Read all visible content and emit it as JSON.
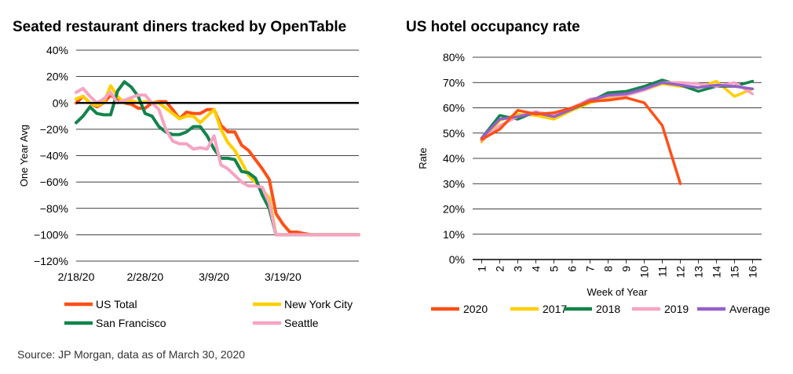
{
  "source": "Source: JP Morgan, data as of March 30, 2020",
  "chart_data": [
    {
      "type": "line",
      "title": "Seated restaurant diners tracked by OpenTable",
      "xlabel": "",
      "ylabel": "One Year Avg",
      "ylim": [
        -120,
        40
      ],
      "yticks": [
        40,
        20,
        0,
        -20,
        -40,
        -60,
        -80,
        -100,
        -120
      ],
      "ytick_labels": [
        "40%",
        "20%",
        "0%",
        "−20%",
        "−40%",
        "−60%",
        "−80%",
        "−100%",
        "−120%"
      ],
      "xlim": [
        0,
        41
      ],
      "xticks": [
        0,
        10,
        20,
        30
      ],
      "xtick_labels": [
        "2/18/20",
        "2/28/20",
        "3/9/20",
        "3/19/20"
      ],
      "zero_line": true,
      "series": [
        {
          "name": "US Total",
          "color": "#FF4F17",
          "x": [
            0,
            1,
            2,
            3,
            4,
            5,
            6,
            7,
            8,
            9,
            10,
            11,
            12,
            13,
            14,
            15,
            16,
            17,
            18,
            19,
            20,
            21,
            22,
            23,
            24,
            25,
            26,
            27,
            28,
            29,
            30,
            31,
            32,
            33,
            34,
            35,
            36,
            37,
            38,
            39,
            40,
            41
          ],
          "y": [
            0,
            5,
            0,
            -3,
            0,
            6,
            2,
            0,
            -1,
            -4,
            -4,
            0,
            1,
            1,
            -5,
            -12,
            -7,
            -8,
            -8,
            -5,
            -5,
            -17,
            -22,
            -22,
            -32,
            -36,
            -43,
            -50,
            -58,
            -84,
            -92,
            -98,
            -98,
            -99,
            -100,
            -100,
            -100,
            -100,
            -100,
            -100,
            -100,
            -100
          ]
        },
        {
          "name": "New York City",
          "color": "#FFCE00",
          "x": [
            0,
            1,
            2,
            3,
            4,
            5,
            6,
            7,
            8,
            9,
            10,
            11,
            12,
            13,
            14,
            15,
            16,
            17,
            18,
            19,
            20,
            21,
            22,
            23,
            24,
            25,
            26,
            27,
            28,
            29,
            30,
            31,
            32,
            33,
            34,
            35,
            36,
            37,
            38,
            39,
            40,
            41
          ],
          "y": [
            3,
            5,
            0,
            -2,
            0,
            13,
            5,
            0,
            2,
            0,
            1,
            0,
            0,
            -4,
            -8,
            -12,
            -10,
            -10,
            -15,
            -10,
            -5,
            -20,
            -30,
            -36,
            -45,
            -55,
            -60,
            -66,
            -72,
            -100,
            -100,
            -100,
            -100,
            -100,
            -100,
            -100,
            -100,
            -100,
            -100,
            -100,
            -100,
            -100
          ]
        },
        {
          "name": "San Francisco",
          "color": "#13834C",
          "x": [
            0,
            1,
            2,
            3,
            4,
            5,
            6,
            7,
            8,
            9,
            10,
            11,
            12,
            13,
            14,
            15,
            16,
            17,
            18,
            19,
            20,
            21,
            22,
            23,
            24,
            25,
            26,
            27,
            28,
            29,
            30,
            31,
            32,
            33,
            34,
            35,
            36,
            37,
            38,
            39,
            40,
            41
          ],
          "y": [
            -15,
            -10,
            -3,
            -8,
            -9,
            -9,
            9,
            16,
            12,
            5,
            -8,
            -10,
            -18,
            -22,
            -24,
            -24,
            -22,
            -18,
            -18,
            -25,
            -35,
            -42,
            -42,
            -43,
            -52,
            -53,
            -57,
            -70,
            -80,
            -100,
            -100,
            -100,
            -100,
            -100,
            -100,
            -100,
            -100,
            -100,
            -100,
            -100,
            -100,
            -100
          ]
        },
        {
          "name": "Seattle",
          "color": "#F7A3C2",
          "x": [
            0,
            1,
            2,
            3,
            4,
            5,
            6,
            7,
            8,
            9,
            10,
            11,
            12,
            13,
            14,
            15,
            16,
            17,
            18,
            19,
            20,
            21,
            22,
            23,
            24,
            25,
            26,
            27,
            28,
            29,
            30,
            31,
            32,
            33,
            34,
            35,
            36,
            37,
            38,
            39,
            40,
            41
          ],
          "y": [
            8,
            11,
            5,
            0,
            3,
            8,
            0,
            2,
            4,
            6,
            6,
            0,
            -5,
            -20,
            -29,
            -31,
            -31,
            -35,
            -34,
            -35,
            -25,
            -47,
            -50,
            -55,
            -60,
            -63,
            -63,
            -64,
            -76,
            -100,
            -100,
            -100,
            -100,
            -100,
            -100,
            -100,
            -100,
            -100,
            -100,
            -100,
            -100,
            -100
          ]
        }
      ],
      "legend": {
        "placement": "bottom",
        "entries": [
          "US Total",
          "New York City",
          "San Francisco",
          "Seattle"
        ]
      }
    },
    {
      "type": "line",
      "title": "US hotel occupancy rate",
      "xlabel": "Week of Year",
      "ylabel": "Rate",
      "ylim": [
        0,
        80
      ],
      "yticks": [
        80,
        70,
        60,
        50,
        40,
        30,
        20,
        10,
        0
      ],
      "ytick_labels": [
        "80%",
        "70%",
        "60%",
        "50%",
        "40%",
        "30%",
        "20%",
        "10%",
        "0%"
      ],
      "categories": [
        "1",
        "2",
        "3",
        "4",
        "5",
        "6",
        "7",
        "8",
        "9",
        "10",
        "11",
        "12",
        "13",
        "14",
        "15",
        "16"
      ],
      "series": [
        {
          "name": "2017",
          "color": "#FFCE00",
          "values": [
            46.5,
            55,
            57.5,
            57,
            55.5,
            59,
            62,
            64,
            65,
            67,
            69.5,
            68.5,
            68,
            70.5,
            64.5,
            67.5
          ]
        },
        {
          "name": "2018",
          "color": "#13834C",
          "values": [
            48,
            57,
            55.5,
            58.5,
            56.5,
            59.5,
            62.5,
            66,
            66.5,
            68.5,
            71,
            69,
            66.5,
            68.5,
            68.5,
            70.5
          ]
        },
        {
          "name": "2019",
          "color": "#F7A3C2",
          "values": [
            47,
            53,
            56.5,
            58.5,
            57,
            60,
            63.5,
            64.5,
            65,
            67,
            70,
            70,
            69.5,
            68.5,
            70,
            65.5
          ]
        },
        {
          "name": "Average",
          "color": "#9461C9",
          "values": [
            48,
            55.5,
            56.5,
            58,
            56.5,
            59.5,
            63,
            65,
            65.5,
            67.5,
            70,
            69,
            68,
            69,
            68.5,
            67.5
          ]
        },
        {
          "name": "2020",
          "color": "#FF4F17",
          "values": [
            47.5,
            51.5,
            59,
            57.5,
            58,
            60,
            62.5,
            63,
            64,
            62,
            53,
            30,
            null,
            null,
            null,
            null
          ]
        }
      ],
      "legend": {
        "placement": "bottom",
        "entries": [
          "2020",
          "2017",
          "2018",
          "2019",
          "Average"
        ]
      }
    }
  ]
}
